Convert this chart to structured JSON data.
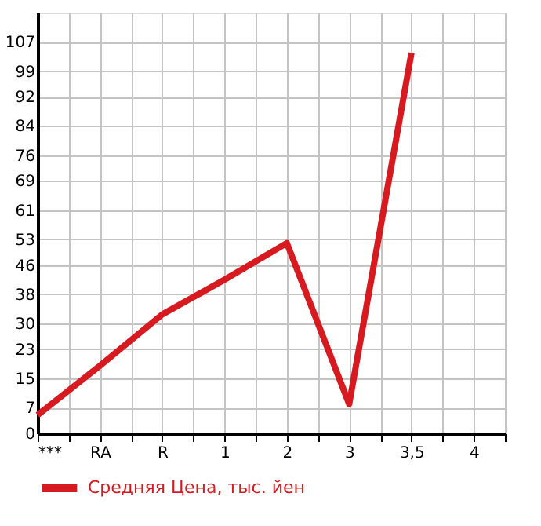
{
  "chart_data": {
    "type": "line",
    "categories": [
      "***",
      "RA",
      "R",
      "1",
      "2",
      "3",
      "3,5",
      "4"
    ],
    "series": [
      {
        "name": "Средняя Цена, тыс. йен",
        "color": "#d71920",
        "values": [
          5,
          18.5,
          32.5,
          42,
          52,
          8,
          104,
          null
        ]
      }
    ],
    "ylim": [
      0,
      115
    ],
    "yticks": [
      0,
      7,
      15,
      23,
      30,
      38,
      46,
      53,
      61,
      69,
      76,
      84,
      92,
      99,
      107
    ],
    "grid": true,
    "legend": "bottom",
    "marker": "none",
    "line_style": "solid"
  }
}
